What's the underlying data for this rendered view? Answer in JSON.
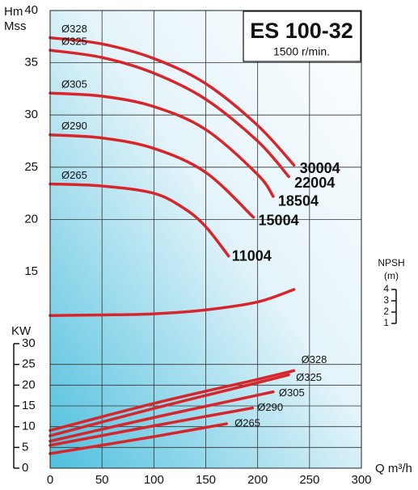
{
  "chart_data": [
    {
      "type": "line",
      "title": "ES 100-32",
      "subtitle": "1500 r/min.",
      "y_label": "Hm",
      "y_unit_label": "Mss",
      "xlim": [
        0,
        300
      ],
      "ylim": [
        15,
        40
      ],
      "yticks": [
        15,
        20,
        25,
        30,
        35,
        40
      ],
      "grid": true,
      "label_color": "#1b6ea6",
      "series": [
        {
          "name": "30004",
          "diameter": "Ø328",
          "color": "#d7262b",
          "x": [
            0,
            50,
            100,
            150,
            200,
            235
          ],
          "values": [
            37.4,
            36.8,
            35.4,
            33,
            29,
            25.2
          ]
        },
        {
          "name": "22004",
          "diameter": "Ø325",
          "color": "#d7262b",
          "x": [
            0,
            50,
            100,
            150,
            200,
            230
          ],
          "values": [
            36.2,
            35.5,
            34,
            31.5,
            27.5,
            24.1
          ]
        },
        {
          "name": "18504",
          "diameter": "Ø305",
          "color": "#d7262b",
          "x": [
            0,
            50,
            100,
            150,
            200,
            215
          ],
          "values": [
            32.1,
            31.8,
            30.8,
            28.6,
            24.3,
            22.2
          ]
        },
        {
          "name": "15004",
          "diameter": "Ø290",
          "color": "#d7262b",
          "x": [
            0,
            50,
            100,
            150,
            196
          ],
          "values": [
            28.1,
            27.8,
            26.8,
            24.5,
            20.2
          ]
        },
        {
          "name": "11004",
          "diameter": "Ø265",
          "color": "#d7262b",
          "x": [
            0,
            50,
            100,
            130,
            150,
            172
          ],
          "values": [
            23.4,
            23.2,
            22.5,
            21,
            19.3,
            16.5
          ]
        }
      ]
    },
    {
      "type": "line",
      "y_label": "NPSH",
      "y_unit_label": "(m)",
      "xlim": [
        0,
        300
      ],
      "ylim": [
        1,
        4
      ],
      "yticks": [
        1,
        2,
        3,
        4
      ],
      "series": [
        {
          "color": "#d7262b",
          "x": [
            0,
            50,
            100,
            150,
            200,
            235
          ],
          "values": [
            1.7,
            1.75,
            1.85,
            2.2,
            2.9,
            4
          ]
        }
      ]
    },
    {
      "type": "line",
      "y_label": "KW",
      "x_label": "Q m³/h",
      "xlim": [
        0,
        300
      ],
      "ylim": [
        0,
        30
      ],
      "xticks": [
        0,
        50,
        100,
        150,
        200,
        250,
        300
      ],
      "yticks": [
        0,
        5,
        10,
        15,
        20,
        25,
        30
      ],
      "grid": true,
      "series": [
        {
          "name": "Ø328",
          "color": "#d7262b",
          "x": [
            0,
            100,
            200,
            235
          ],
          "values": [
            9.1,
            15.6,
            21.4,
            23.5
          ]
        },
        {
          "name": "Ø325",
          "color": "#d7262b",
          "x": [
            0,
            100,
            200,
            230
          ],
          "values": [
            7.8,
            14.4,
            20.6,
            22.5
          ]
        },
        {
          "name": "Ø305",
          "color": "#d7262b",
          "x": [
            0,
            100,
            200,
            215
          ],
          "values": [
            6.5,
            12.2,
            17.6,
            18.4
          ]
        },
        {
          "name": "Ø290",
          "color": "#d7262b",
          "x": [
            0,
            100,
            195
          ],
          "values": [
            5.5,
            10.2,
            14.5
          ]
        },
        {
          "name": "Ø265",
          "color": "#d7262b",
          "x": [
            0,
            100,
            170
          ],
          "values": [
            3.5,
            7.6,
            10.7
          ]
        }
      ]
    }
  ]
}
